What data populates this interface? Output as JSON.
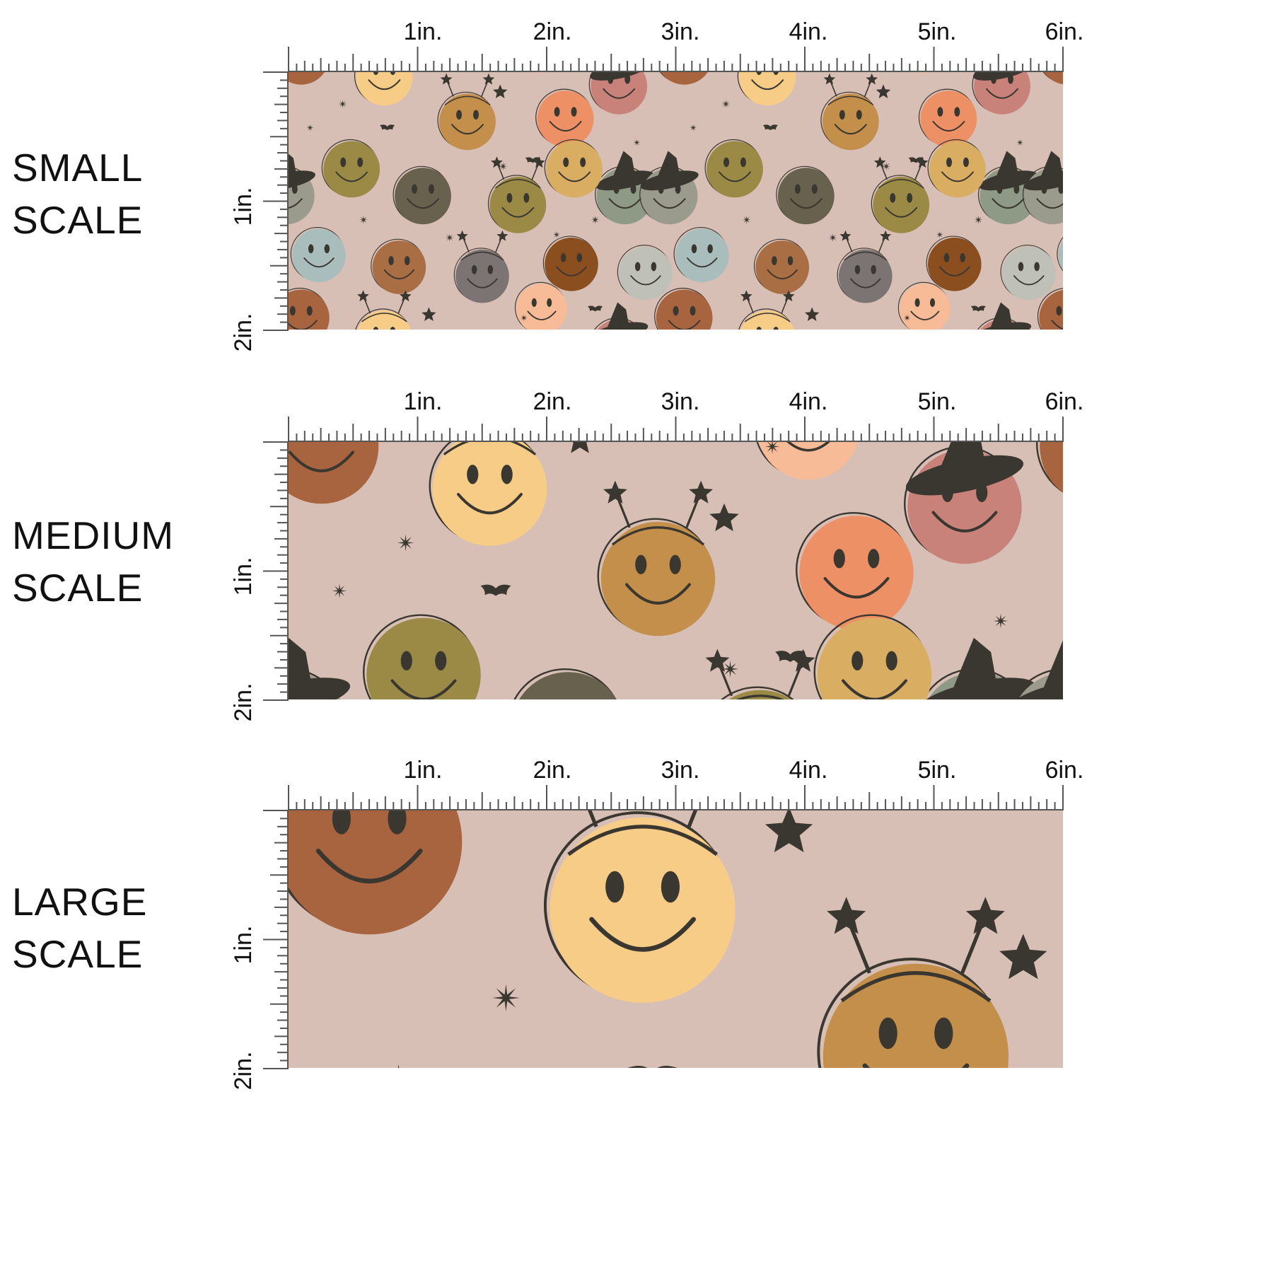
{
  "panels": [
    {
      "label_line1": "SMALL",
      "label_line2": "SCALE",
      "x_ticks": [
        "1in.",
        "2in.",
        "3in.",
        "4in.",
        "5in.",
        "6in."
      ],
      "y_ticks": [
        "1in.",
        "2in."
      ],
      "scale": 0.42
    },
    {
      "label_line1": "MEDIUM",
      "label_line2": "SCALE",
      "x_ticks": [
        "1in.",
        "2in.",
        "3in.",
        "4in.",
        "5in.",
        "6in."
      ],
      "y_ticks": [
        "1in.",
        "2in."
      ],
      "scale": 0.85
    },
    {
      "label_line1": "LARGE",
      "label_line2": "SCALE",
      "x_ticks": [
        "1in.",
        "2in.",
        "3in.",
        "4in.",
        "5in.",
        "6in."
      ],
      "y_ticks": [
        "1in.",
        "2in."
      ],
      "scale": 1.38
    }
  ],
  "colors": {
    "fabric_background": "#d8bfb5",
    "ruler": "#555555",
    "ink": "#3a3630",
    "faces": [
      "#c38f4a",
      "#ee9066",
      "#d9ae63",
      "#a7643e",
      "#f7cc87",
      "#9a8a45",
      "#67614d",
      "#9a9b8d",
      "#8e9a86",
      "#a9bdbd",
      "#aa6e44",
      "#7b7473",
      "#8b4e1f",
      "#c8827a",
      "#bfc0b7",
      "#f8bb98"
    ]
  },
  "icons": [
    "smiley-face-icon",
    "witch-hat-icon",
    "bat-icon",
    "star-icon",
    "sparkle-icon"
  ]
}
